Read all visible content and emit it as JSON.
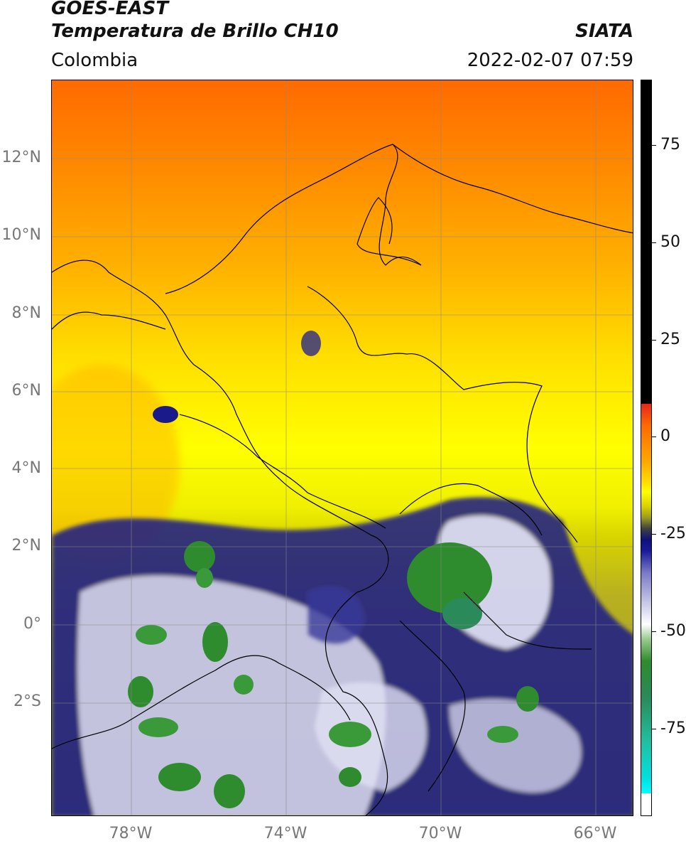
{
  "header": {
    "line1": "GOES-EAST",
    "line2": "Temperatura de Brillo CH10",
    "organization": "SIATA",
    "region": "Colombia",
    "timestamp": "2022-02-07 07:59"
  },
  "axes": {
    "lat_labels": [
      "12°N",
      "10°N",
      "8°N",
      "6°N",
      "4°N",
      "2°N",
      "0°",
      "2°S"
    ],
    "lon_labels": [
      "78°W",
      "74°W",
      "70°W",
      "66°W"
    ]
  },
  "colorbar": {
    "labels": [
      "75",
      "50",
      "25",
      "0",
      "-25",
      "-50",
      "-75"
    ]
  },
  "colors": {
    "warm": "#ff7a00",
    "mid": "#ffff00",
    "olive": "#a8a830",
    "deep_convection": "#10107a",
    "cold_tops": "#2e8b2e"
  }
}
